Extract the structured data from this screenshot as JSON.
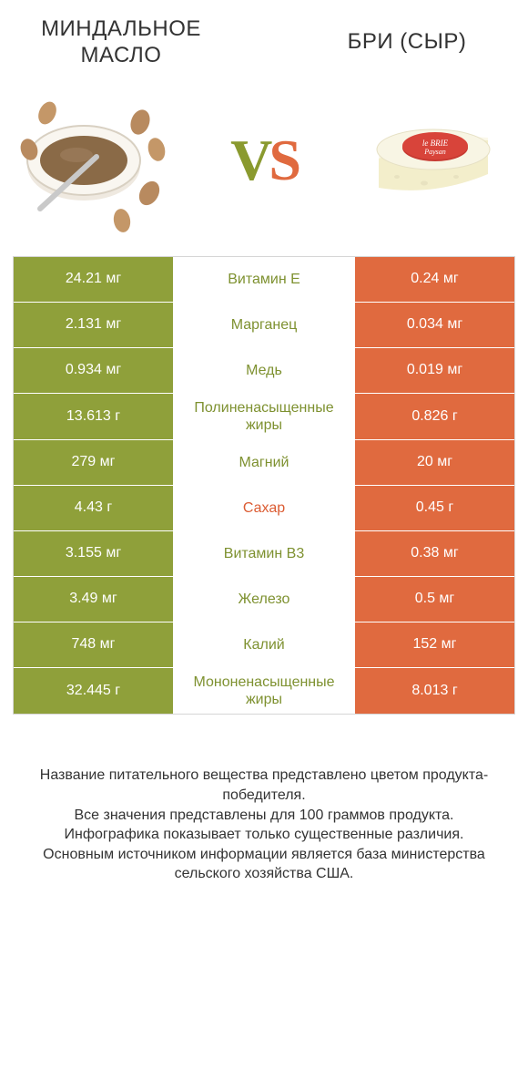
{
  "colors": {
    "left_bar": "#8fa03a",
    "right_bar": "#e06a3f",
    "left_text": "#7e9130",
    "right_text": "#db5c33",
    "vs_left": "#8a9a2f",
    "vs_right": "#e06a3f",
    "border": "#d6d6d6",
    "body_text": "#333333"
  },
  "header": {
    "left_title": "МИНДАЛЬНОЕ МАСЛО",
    "right_title": "БРИ (СЫР)",
    "vs_v": "V",
    "vs_s": "S"
  },
  "rows": [
    {
      "left": "24.21 мг",
      "mid": "Витамин E",
      "right": "0.24 мг",
      "winner": "left"
    },
    {
      "left": "2.131 мг",
      "mid": "Марганец",
      "right": "0.034 мг",
      "winner": "left"
    },
    {
      "left": "0.934 мг",
      "mid": "Медь",
      "right": "0.019 мг",
      "winner": "left"
    },
    {
      "left": "13.613 г",
      "mid": "Полиненасыщенные жиры",
      "right": "0.826 г",
      "winner": "left"
    },
    {
      "left": "279 мг",
      "mid": "Магний",
      "right": "20 мг",
      "winner": "left"
    },
    {
      "left": "4.43 г",
      "mid": "Сахар",
      "right": "0.45 г",
      "winner": "right"
    },
    {
      "left": "3.155 мг",
      "mid": "Витамин B3",
      "right": "0.38 мг",
      "winner": "left"
    },
    {
      "left": "3.49 мг",
      "mid": "Железо",
      "right": "0.5 мг",
      "winner": "left"
    },
    {
      "left": "748 мг",
      "mid": "Калий",
      "right": "152 мг",
      "winner": "left"
    },
    {
      "left": "32.445 г",
      "mid": "Мононенасыщенные жиры",
      "right": "8.013 г",
      "winner": "left"
    }
  ],
  "footer": {
    "line1": "Название питательного вещества представлено цветом продукта-победителя.",
    "line2": "Все значения представлены для 100 граммов продукта.",
    "line3": "Инфографика показывает только существенные различия.",
    "line4": "Основным источником информации является база министерства сельского хозяйства США."
  }
}
